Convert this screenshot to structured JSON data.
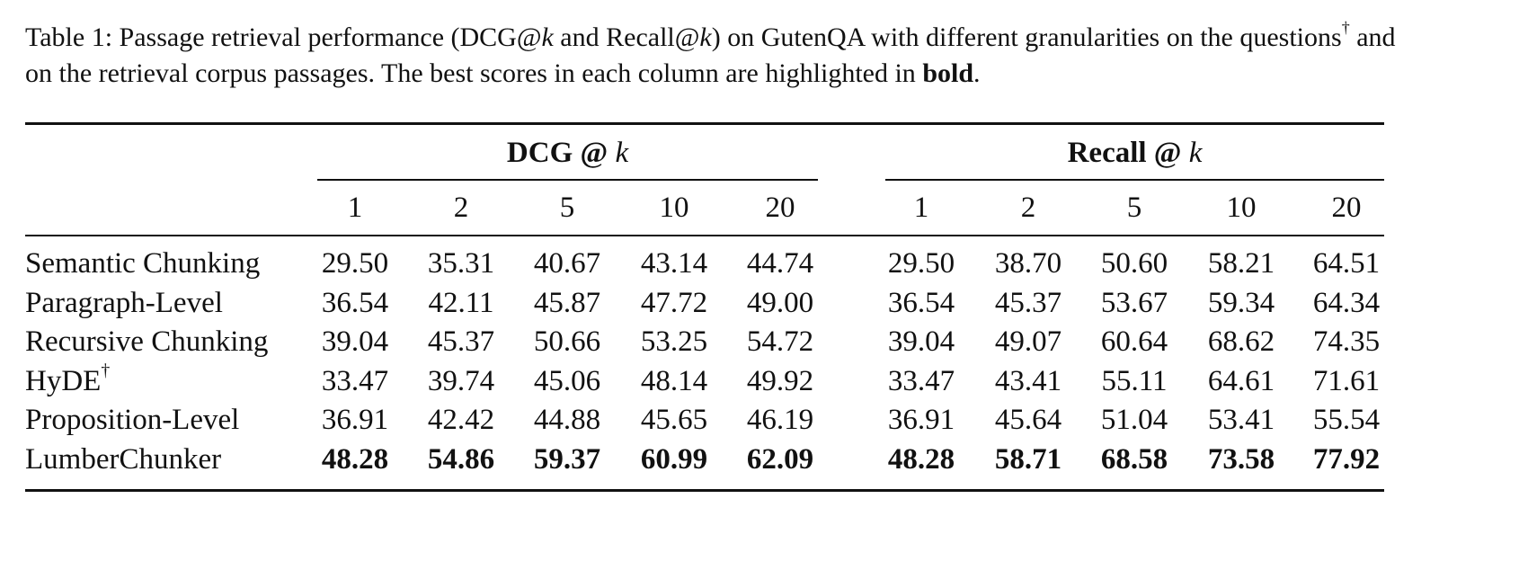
{
  "caption": {
    "segments": [
      "Table 1: Passage retrieval performance (DCG@",
      "k",
      " and Recall@",
      "k",
      ") on GutenQA with different granularities on the questions",
      "†",
      " and on the retrieval corpus passages. The best scores in each column are highlighted in ",
      "bold",
      "."
    ]
  },
  "table": {
    "groups": [
      {
        "name": "DCG @",
        "var": "k",
        "key": "dcg"
      },
      {
        "name": "Recall @",
        "var": "k",
        "key": "recall"
      }
    ],
    "k": [
      "1",
      "2",
      "5",
      "10",
      "20"
    ],
    "rows": [
      {
        "name": "Semantic Chunking",
        "dcg": [
          "29.50",
          "35.31",
          "40.67",
          "43.14",
          "44.74"
        ],
        "recall": [
          "29.50",
          "38.70",
          "50.60",
          "58.21",
          "64.51"
        ]
      },
      {
        "name": "Paragraph-Level",
        "dcg": [
          "36.54",
          "42.11",
          "45.87",
          "47.72",
          "49.00"
        ],
        "recall": [
          "36.54",
          "45.37",
          "53.67",
          "59.34",
          "64.34"
        ]
      },
      {
        "name": "Recursive Chunking",
        "dcg": [
          "39.04",
          "45.37",
          "50.66",
          "53.25",
          "54.72"
        ],
        "recall": [
          "39.04",
          "49.07",
          "60.64",
          "68.62",
          "74.35"
        ]
      },
      {
        "name": "HyDE",
        "mark": "†",
        "dcg": [
          "33.47",
          "39.74",
          "45.06",
          "48.14",
          "49.92"
        ],
        "recall": [
          "33.47",
          "43.41",
          "55.11",
          "64.61",
          "71.61"
        ]
      },
      {
        "name": "Proposition-Level",
        "dcg": [
          "36.91",
          "42.42",
          "44.88",
          "45.65",
          "46.19"
        ],
        "recall": [
          "36.91",
          "45.64",
          "51.04",
          "53.41",
          "55.54"
        ]
      },
      {
        "name": "LumberChunker",
        "bold": true,
        "dcg": [
          "48.28",
          "54.86",
          "59.37",
          "60.99",
          "62.09"
        ],
        "recall": [
          "48.28",
          "58.71",
          "68.58",
          "73.58",
          "77.92"
        ]
      }
    ]
  }
}
